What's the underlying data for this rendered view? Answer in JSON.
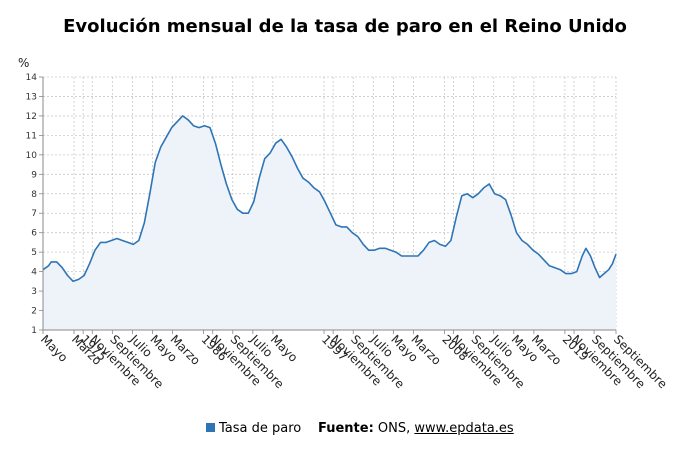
{
  "chart_data": {
    "type": "area",
    "title": "Evolución mensual de la tasa de paro en el Reino Unido",
    "unit_label": "%",
    "xlabel": "",
    "ylabel": "",
    "ylim": [
      1,
      14
    ],
    "yticks": [
      1,
      2,
      3,
      4,
      5,
      6,
      7,
      8,
      9,
      10,
      11,
      12,
      13,
      14
    ],
    "grid": true,
    "x_start": "1971-05",
    "x_end": "2023-09",
    "xtick_labels": [
      {
        "date": "1971-05",
        "label": "Mayo"
      },
      {
        "date": "1974-03",
        "label": "Marzo"
      },
      {
        "date": "1975-01",
        "label": "1975"
      },
      {
        "date": "1975-11",
        "label": "Noviembre"
      },
      {
        "date": "1977-09",
        "label": "Septiembre"
      },
      {
        "date": "1979-07",
        "label": "Julio"
      },
      {
        "date": "1981-05",
        "label": "Mayo"
      },
      {
        "date": "1983-03",
        "label": "Marzo"
      },
      {
        "date": "1986-01",
        "label": "1986"
      },
      {
        "date": "1986-11",
        "label": "Noviembre"
      },
      {
        "date": "1988-09",
        "label": "Septiembre"
      },
      {
        "date": "1990-07",
        "label": "Julio"
      },
      {
        "date": "1992-05",
        "label": "Mayo"
      },
      {
        "date": "1997-01",
        "label": "1997"
      },
      {
        "date": "1997-11",
        "label": "Noviembre"
      },
      {
        "date": "1999-09",
        "label": "Septiembre"
      },
      {
        "date": "2001-07",
        "label": "Julio"
      },
      {
        "date": "2003-05",
        "label": "Mayo"
      },
      {
        "date": "2005-03",
        "label": "Marzo"
      },
      {
        "date": "2008-01",
        "label": "2008"
      },
      {
        "date": "2008-11",
        "label": "Noviembre"
      },
      {
        "date": "2010-09",
        "label": "Septiembre"
      },
      {
        "date": "2012-07",
        "label": "Julio"
      },
      {
        "date": "2014-05",
        "label": "Mayo"
      },
      {
        "date": "2016-03",
        "label": "Marzo"
      },
      {
        "date": "2019-01",
        "label": "2019"
      },
      {
        "date": "2019-11",
        "label": "Noviembre"
      },
      {
        "date": "2021-09",
        "label": "Septiembre"
      },
      {
        "date": "2023-09",
        "label": "Septiembre"
      }
    ],
    "series": [
      {
        "name": "Tasa de paro",
        "color": "#2e75b6",
        "points": [
          [
            "1971-05",
            4.1
          ],
          [
            "1971-11",
            4.3
          ],
          [
            "1972-02",
            4.5
          ],
          [
            "1972-08",
            4.5
          ],
          [
            "1973-02",
            4.2
          ],
          [
            "1973-08",
            3.8
          ],
          [
            "1974-02",
            3.5
          ],
          [
            "1974-08",
            3.6
          ],
          [
            "1975-02",
            3.8
          ],
          [
            "1975-08",
            4.4
          ],
          [
            "1976-02",
            5.1
          ],
          [
            "1976-08",
            5.5
          ],
          [
            "1977-02",
            5.5
          ],
          [
            "1977-08",
            5.6
          ],
          [
            "1978-02",
            5.7
          ],
          [
            "1978-08",
            5.6
          ],
          [
            "1979-02",
            5.5
          ],
          [
            "1979-08",
            5.4
          ],
          [
            "1980-02",
            5.6
          ],
          [
            "1980-08",
            6.5
          ],
          [
            "1981-02",
            8.0
          ],
          [
            "1981-08",
            9.6
          ],
          [
            "1982-02",
            10.4
          ],
          [
            "1982-08",
            10.9
          ],
          [
            "1983-02",
            11.4
          ],
          [
            "1983-08",
            11.7
          ],
          [
            "1984-02",
            12.0
          ],
          [
            "1984-08",
            11.8
          ],
          [
            "1985-02",
            11.5
          ],
          [
            "1985-08",
            11.4
          ],
          [
            "1986-02",
            11.5
          ],
          [
            "1986-08",
            11.4
          ],
          [
            "1987-02",
            10.6
          ],
          [
            "1987-08",
            9.5
          ],
          [
            "1988-02",
            8.5
          ],
          [
            "1988-08",
            7.7
          ],
          [
            "1989-02",
            7.2
          ],
          [
            "1989-08",
            7.0
          ],
          [
            "1990-02",
            7.0
          ],
          [
            "1990-08",
            7.6
          ],
          [
            "1991-02",
            8.8
          ],
          [
            "1991-08",
            9.8
          ],
          [
            "1992-02",
            10.1
          ],
          [
            "1992-08",
            10.6
          ],
          [
            "1993-02",
            10.8
          ],
          [
            "1993-08",
            10.4
          ],
          [
            "1994-02",
            9.9
          ],
          [
            "1994-08",
            9.3
          ],
          [
            "1995-02",
            8.8
          ],
          [
            "1995-08",
            8.6
          ],
          [
            "1996-02",
            8.3
          ],
          [
            "1996-08",
            8.1
          ],
          [
            "1997-02",
            7.6
          ],
          [
            "1997-08",
            7.0
          ],
          [
            "1998-02",
            6.4
          ],
          [
            "1998-08",
            6.3
          ],
          [
            "1999-02",
            6.3
          ],
          [
            "1999-08",
            6.0
          ],
          [
            "2000-02",
            5.8
          ],
          [
            "2000-08",
            5.4
          ],
          [
            "2001-02",
            5.1
          ],
          [
            "2001-08",
            5.1
          ],
          [
            "2002-02",
            5.2
          ],
          [
            "2002-08",
            5.2
          ],
          [
            "2003-02",
            5.1
          ],
          [
            "2003-08",
            5.0
          ],
          [
            "2004-02",
            4.8
          ],
          [
            "2004-08",
            4.8
          ],
          [
            "2005-02",
            4.8
          ],
          [
            "2005-08",
            4.8
          ],
          [
            "2006-02",
            5.1
          ],
          [
            "2006-08",
            5.5
          ],
          [
            "2007-02",
            5.6
          ],
          [
            "2007-08",
            5.4
          ],
          [
            "2008-02",
            5.3
          ],
          [
            "2008-08",
            5.6
          ],
          [
            "2009-02",
            6.8
          ],
          [
            "2009-08",
            7.9
          ],
          [
            "2010-02",
            8.0
          ],
          [
            "2010-08",
            7.8
          ],
          [
            "2011-02",
            8.0
          ],
          [
            "2011-08",
            8.3
          ],
          [
            "2012-02",
            8.5
          ],
          [
            "2012-08",
            8.0
          ],
          [
            "2013-02",
            7.9
          ],
          [
            "2013-08",
            7.7
          ],
          [
            "2014-02",
            6.9
          ],
          [
            "2014-08",
            6.0
          ],
          [
            "2015-02",
            5.6
          ],
          [
            "2015-08",
            5.4
          ],
          [
            "2016-02",
            5.1
          ],
          [
            "2016-08",
            4.9
          ],
          [
            "2017-02",
            4.6
          ],
          [
            "2017-08",
            4.3
          ],
          [
            "2018-02",
            4.2
          ],
          [
            "2018-08",
            4.1
          ],
          [
            "2019-02",
            3.9
          ],
          [
            "2019-08",
            3.9
          ],
          [
            "2020-02",
            4.0
          ],
          [
            "2020-08",
            4.8
          ],
          [
            "2020-12",
            5.2
          ],
          [
            "2021-05",
            4.8
          ],
          [
            "2021-10",
            4.2
          ],
          [
            "2022-03",
            3.7
          ],
          [
            "2022-08",
            3.9
          ],
          [
            "2023-01",
            4.1
          ],
          [
            "2023-05",
            4.4
          ],
          [
            "2023-09",
            4.9
          ]
        ]
      }
    ]
  },
  "legend": {
    "label": "Tasa de paro",
    "color": "#2e75b6"
  },
  "source": {
    "prefix": "Fuente:",
    "text": " ONS, ",
    "link_text": "www.epdata.es"
  }
}
